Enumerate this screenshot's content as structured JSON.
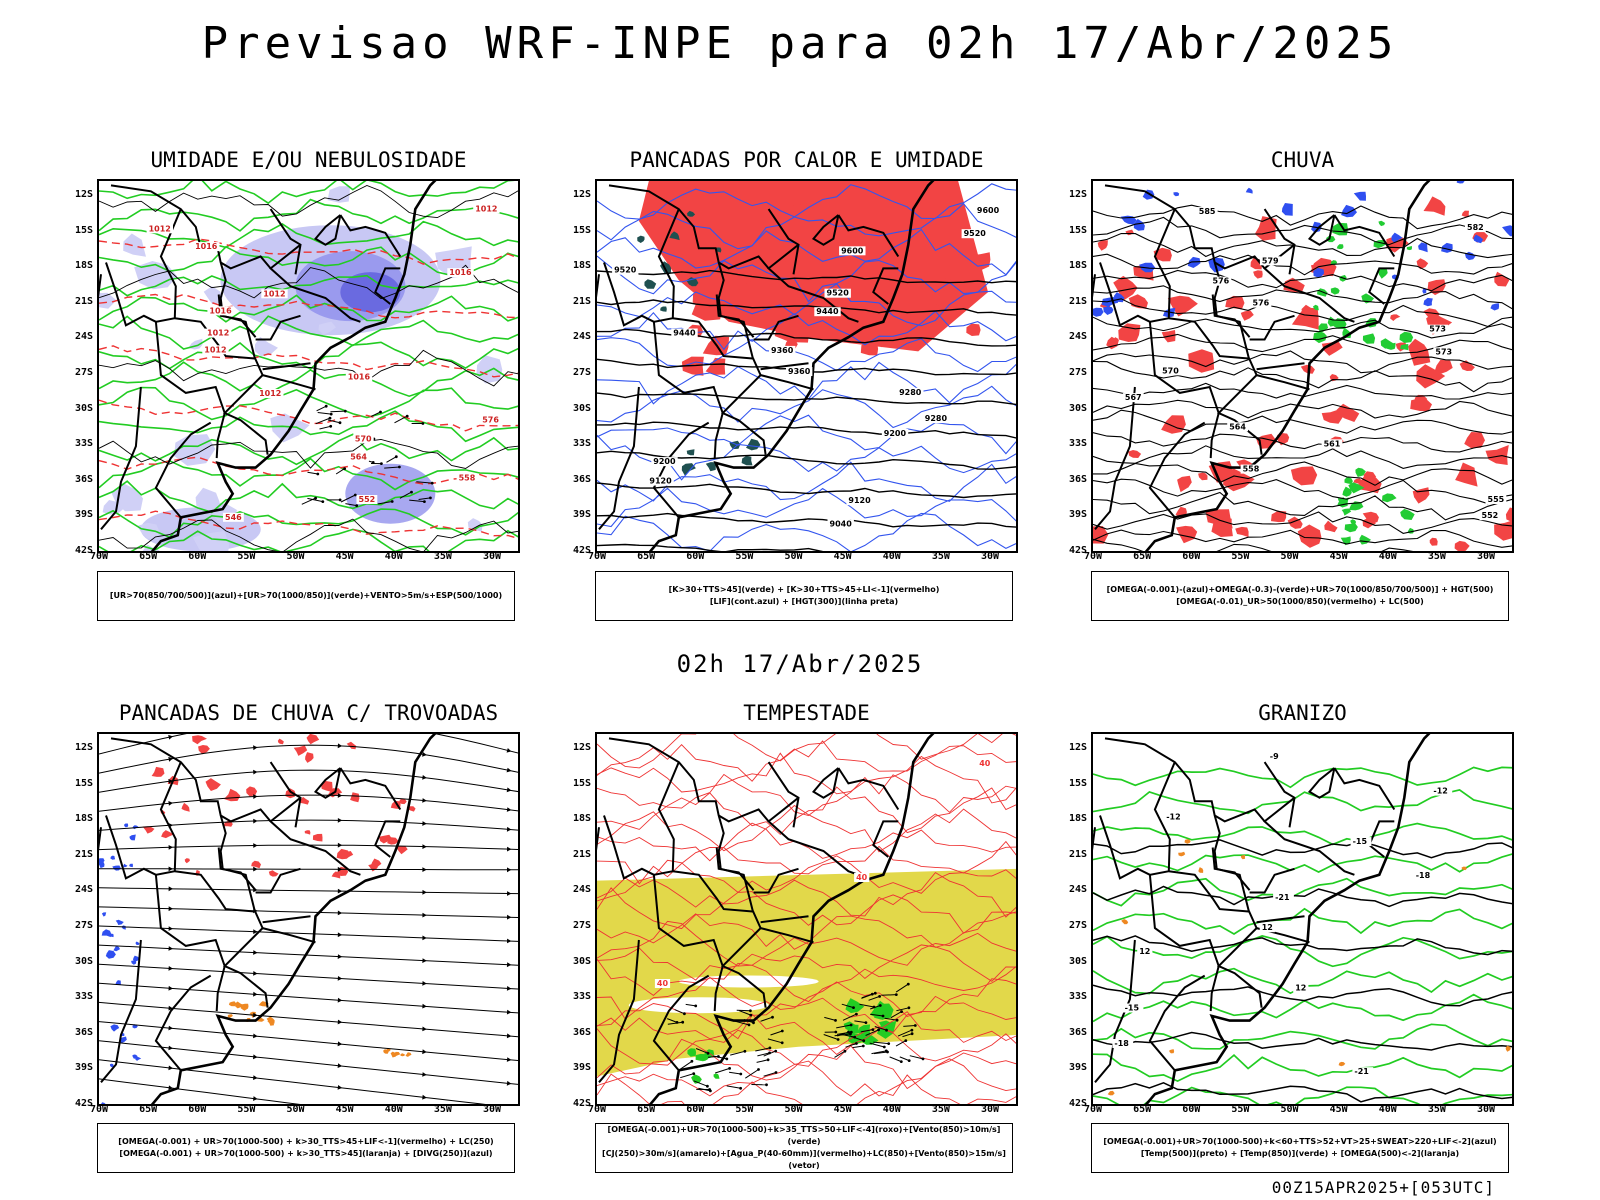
{
  "title": "Previsao WRF-INPE  para 02h 17/Abr/2025",
  "subtitle": "02h 17/Abr/2025",
  "footer": "00Z15APR2025+[053UTC]",
  "lat_labels": [
    "12S",
    "15S",
    "18S",
    "21S",
    "24S",
    "27S",
    "30S",
    "33S",
    "36S",
    "39S",
    "42S"
  ],
  "lon_labels": [
    "70W",
    "65W",
    "60W",
    "55W",
    "50W",
    "45W",
    "40W",
    "35W",
    "30W"
  ],
  "panels": [
    {
      "id": "umidade",
      "title": "UMIDADE E/OU NEBULOSIDADE",
      "legend": [
        "[UR>70(850/700/500)](azul)+[UR>70(1000/850)](verde)+VENTO>5m/s+ESP(500/1000)"
      ],
      "contour_labels": [
        "1012",
        "1012",
        "1016",
        "1016",
        "1012",
        "1016",
        "1012",
        "1012",
        "1016",
        "1012",
        "576",
        "570",
        "564",
        "558",
        "552",
        "546"
      ]
    },
    {
      "id": "pancadas-calor",
      "title": "PANCADAS POR CALOR E UMIDADE",
      "legend": [
        "[K>30+TTS>45](verde) + [K>30+TTS>45+LI<-1](vermelho)",
        "[LIF](cont.azul) + [HGT(300)](linha preta)"
      ],
      "contour_labels": [
        "9600",
        "9520",
        "9600",
        "9520",
        "9520",
        "9440",
        "9440",
        "9360",
        "9360",
        "9280",
        "9280",
        "9200",
        "9200",
        "9120",
        "9120",
        "9040"
      ]
    },
    {
      "id": "chuva",
      "title": "CHUVA",
      "legend": [
        "[OMEGA(-0.001)-(azul)+OMEGA(-0.3)-(verde)+UR>70(1000/850/700/500)] + HGT(500)",
        "[OMEGA(-0.01)_UR>50(1000/850)(vermelho) + LC(500)"
      ],
      "contour_labels": [
        "585",
        "582",
        "579",
        "576",
        "576",
        "573",
        "573",
        "570",
        "567",
        "564",
        "561",
        "558",
        "555",
        "552"
      ]
    },
    {
      "id": "pancadas-trovoadas",
      "title": "PANCADAS DE CHUVA C/ TROVOADAS",
      "legend": [
        "[OMEGA(-0.001) + UR>70(1000-500) + k>30_TTS>45+LIF<-1](vermelho) + LC(250)",
        "[OMEGA(-0.001) + UR>70(1000-500) + k>30_TTS>45](laranja) + [DIVG(250)](azul)"
      ],
      "contour_labels": []
    },
    {
      "id": "tempestade",
      "title": "TEMPESTADE",
      "legend": [
        "[OMEGA(-0.001)+UR>70(1000-500)+k>35_TTS>50+LIF<-4](roxo)+[Vento(850)>10m/s](verde)",
        "[CJ(250)>30m/s](amarelo)+[Agua_P(40-60mm)](vermelho)+LC(850)+[Vento(850)>15m/s](vetor)"
      ],
      "contour_labels": [
        "40",
        "40",
        "40"
      ]
    },
    {
      "id": "granizo",
      "title": "GRANIZO",
      "legend": [
        "[OMEGA(-0.001)+UR>70(1000-500)+k<60+TTS>52+VT>25+SWEAT>220+LIF<-2](azul)",
        "[Temp(500)](preto) + [Temp(850)](verde) + [OMEGA(500)<-2](laranja)"
      ],
      "contour_labels": [
        "-9",
        "-12",
        "-12",
        "-15",
        "-18",
        "-21",
        "12",
        "12",
        "12",
        "-15",
        "-18",
        "-21"
      ]
    }
  ]
}
